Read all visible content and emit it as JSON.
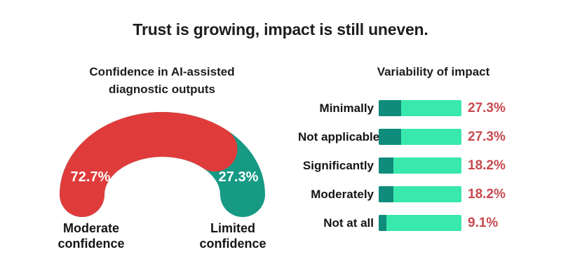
{
  "header": {
    "title": "Trust is growing, impact is still uneven."
  },
  "colors": {
    "title_text": "#1d1d1f",
    "gauge_red": "#e03b3b",
    "gauge_teal": "#169a84",
    "bar_fill": "#0f8c7c",
    "bar_track": "#38e8ac",
    "value_text": "#c8494f",
    "label_text": "#141414",
    "background": "#ffffff"
  },
  "chart_data": [
    {
      "type": "pie",
      "variant": "semicircle-donut-gauge",
      "title": "Confidence in AI-assisted diagnostic outputs",
      "title_lines": [
        "Confidence in AI-assisted",
        "diagnostic outputs"
      ],
      "total": 100,
      "value_labels_inside": true,
      "segments": [
        {
          "label": "Moderate confidence",
          "value": 72.7,
          "display": "72.7%",
          "color": "#e03b3b"
        },
        {
          "label": "Limited confidence",
          "value": 27.3,
          "display": "27.3%",
          "color": "#169a84"
        }
      ]
    },
    {
      "type": "bar",
      "orientation": "horizontal",
      "title": "Variability of impact",
      "categories": [
        "Minimally",
        "Not applicable",
        "Significantly",
        "Moderately",
        "Not at all"
      ],
      "values": [
        27.3,
        27.3,
        18.2,
        18.2,
        9.1
      ],
      "value_labels": [
        "27.3%",
        "27.3%",
        "18.2%",
        "18.2%",
        "9.1%"
      ],
      "xlim": [
        0,
        100
      ],
      "grid": false,
      "legend": "none",
      "track_full_width": true
    }
  ]
}
